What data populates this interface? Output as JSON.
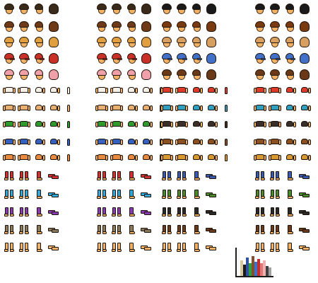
{
  "sheet": {
    "background": "#ffffff",
    "outline": "#20140a",
    "skin": "#f2b266",
    "blocks": {
      "head_rows": [
        "dark-hair",
        "brown-hair",
        "blonde-hair",
        "cap",
        "pink-hair-afro"
      ],
      "torso_rows": [
        "white-shirt",
        "tan-shirt",
        "green-shirt",
        "blue-shirt",
        "orange-shirt"
      ],
      "legs_rows": [
        "red-pants",
        "cyan-pants",
        "purple-pants",
        "khaki-pants",
        "bare-legs"
      ]
    },
    "sets": [
      {
        "name": "set-1",
        "head_colors": [
          "#3a2a1a",
          "#6e3a18",
          "#e0a040",
          "#c83028",
          "#f0a0a8"
        ],
        "cap_color": "#c83028",
        "torso_colors": [
          "#f4f0e8",
          "#e8b070",
          "#2e9a2e",
          "#3460c0",
          "#e88a40"
        ],
        "legs_colors": [
          "#d03030",
          "#30a8d8",
          "#8a3ab0",
          "#8a7a5a",
          "#f2b266"
        ]
      },
      {
        "name": "set-2",
        "head_colors": [
          "#3a2a1a",
          "#6e3a18",
          "#e0a040",
          "#c83028",
          "#f0a0a8"
        ],
        "cap_color": "#c83028",
        "torso_colors": [
          "#f4f0e8",
          "#e8b070",
          "#2e9a2e",
          "#3460c0",
          "#e88a40"
        ],
        "legs_colors": [
          "#d03030",
          "#30a8d8",
          "#8a3ab0",
          "#8a7a5a",
          "#f2b266"
        ]
      },
      {
        "name": "set-3",
        "head_colors": [
          "#1a1a1a",
          "#7a3a10",
          "#d8a060",
          "#4070c8",
          "#6a3a18"
        ],
        "cap_color": "#4070c8",
        "torso_colors": [
          "#e03a2a",
          "#30a0c0",
          "#3a2e2a",
          "#8a5020",
          "#d89a30"
        ],
        "legs_colors": [
          "#3a5ab0",
          "#4a8a2a",
          "#2a2a2a",
          "#6a3a1a",
          "#f2b266"
        ]
      },
      {
        "name": "set-4",
        "head_colors": [
          "#1a1a1a",
          "#7a3a10",
          "#d8a060",
          "#4070c8",
          "#6a3a18"
        ],
        "cap_color": "#4070c8",
        "torso_colors": [
          "#e03a2a",
          "#30a0c0",
          "#3a2e2a",
          "#8a5020",
          "#d89a30"
        ],
        "legs_colors": [
          "#3a5ab0",
          "#4a8a2a",
          "#2a2a2a",
          "#6a3a1a",
          "#f2b266"
        ]
      }
    ]
  },
  "palette": {
    "colors": [
      "#f8f8f8",
      "#d8c8a0",
      "#1a1a1a",
      "#3050a0",
      "#30a040",
      "#805030",
      "#4070c8",
      "#c03030",
      "#e07878",
      "#f0b0b0",
      "#404040",
      "#a0a0a0"
    ],
    "levels": [
      0.95,
      0.55,
      0.4,
      0.65,
      0.45,
      0.7,
      0.5,
      0.6,
      0.45,
      0.55,
      0.35,
      0.3
    ]
  }
}
